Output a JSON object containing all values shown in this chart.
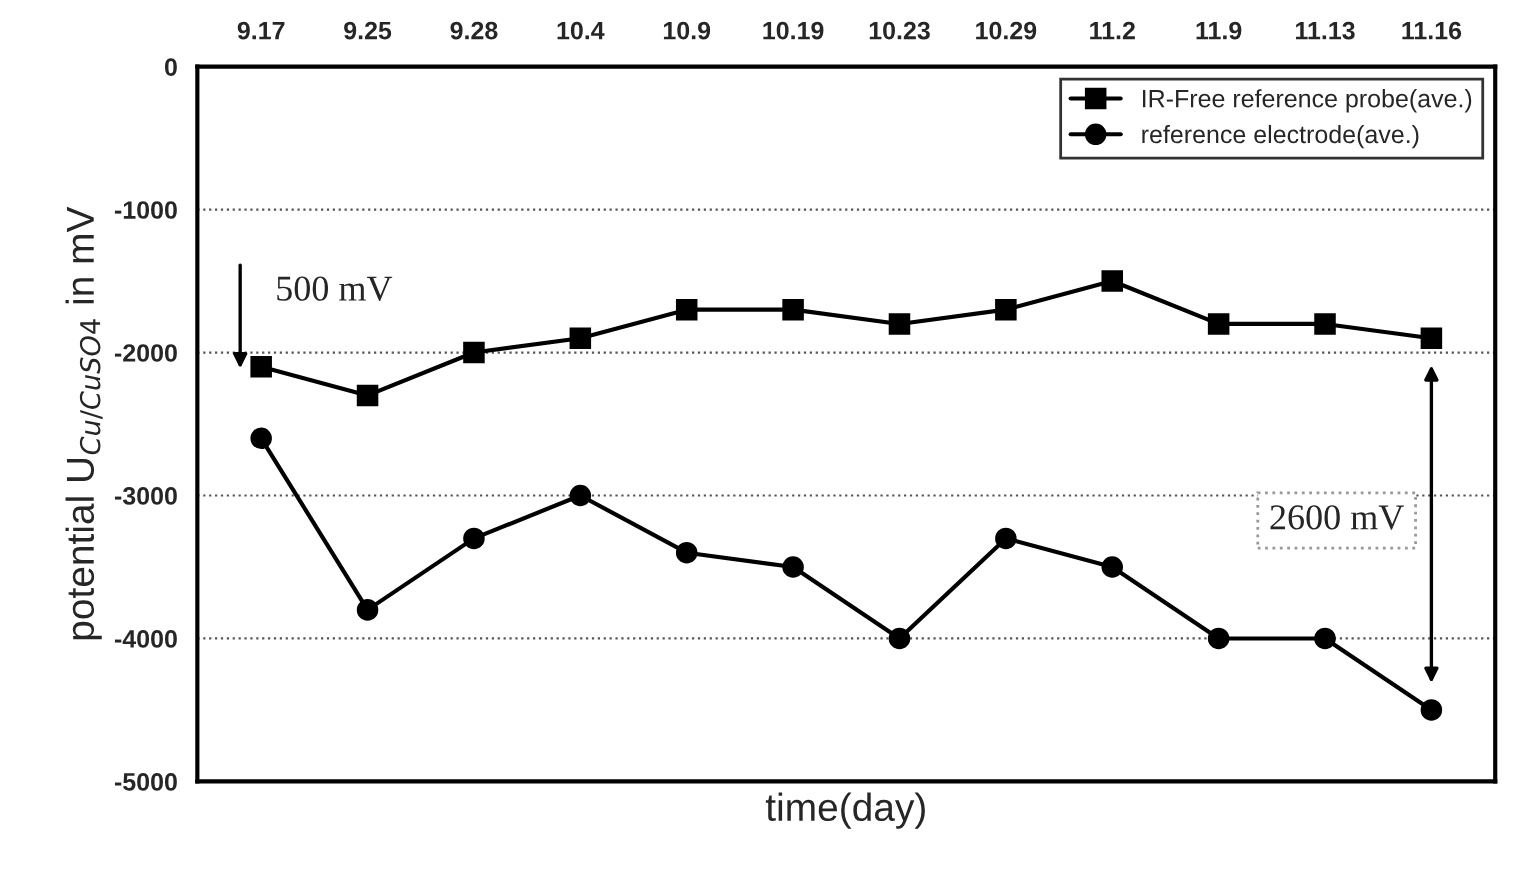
{
  "chart_data": {
    "type": "line",
    "xlabel": "time(day)",
    "ylabel": "potential U$_{Cu/CuSO4}$ in mV",
    "categories": [
      "9.17",
      "9.25",
      "9.28",
      "10.4",
      "10.9",
      "10.19",
      "10.23",
      "10.29",
      "11.2",
      "11.9",
      "11.13",
      "11.16"
    ],
    "series": [
      {
        "name": "IR-Free reference probe(ave.)",
        "color": "#000000",
        "marker": "square",
        "values": [
          -2100,
          -2300,
          -2000,
          -1900,
          -1700,
          -1700,
          -1800,
          -1700,
          -1500,
          -1800,
          -1800,
          -1900
        ]
      },
      {
        "name": "reference electrode(ave.)",
        "color": "#000000",
        "marker": "circle",
        "values": [
          -2600,
          -3800,
          -3300,
          -3000,
          -3400,
          -3500,
          -4000,
          -3300,
          -3500,
          -4000,
          -4000,
          -4500
        ]
      }
    ],
    "ylim": [
      -5000,
      0
    ],
    "yticks": [
      -5000,
      -4000,
      -3000,
      -2000,
      -1000,
      0
    ],
    "grid": "y",
    "line_style": "solid",
    "legend": "top right",
    "annotations": [
      "500 mV",
      "2600 mV"
    ]
  }
}
